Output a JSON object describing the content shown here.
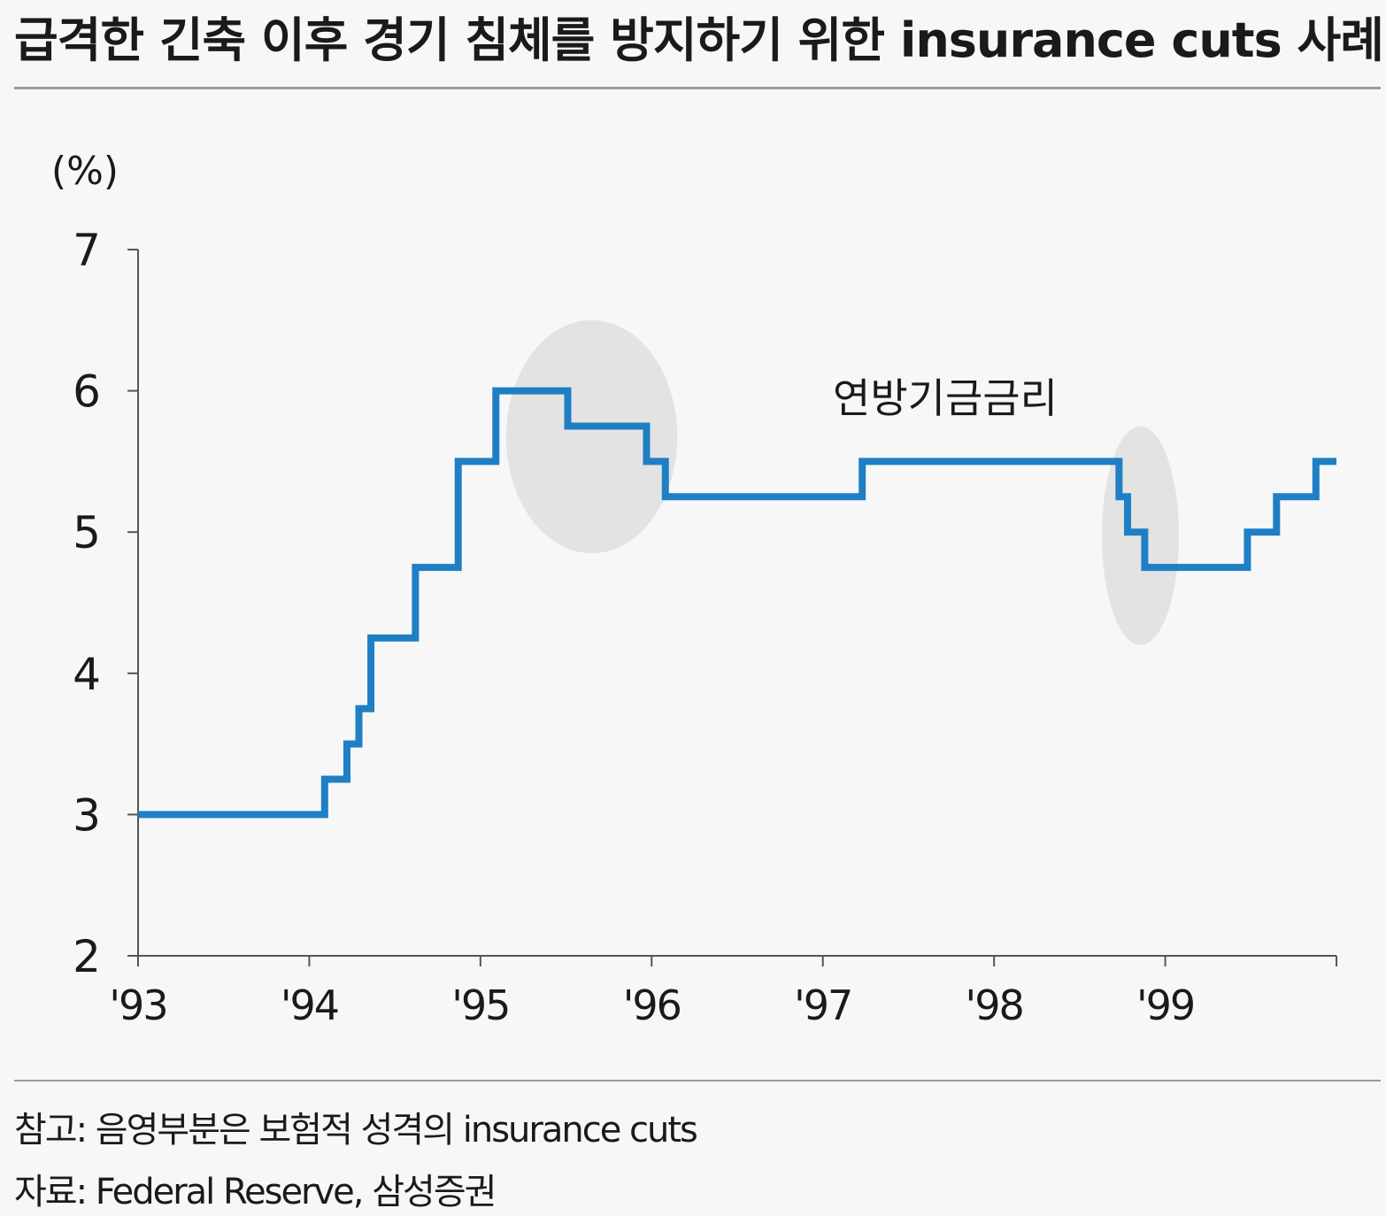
{
  "title": "급격한 긴축 이후 경기 침체를 방지하기 위한 insurance cuts 사례",
  "notes": {
    "reference": "참고: 음영부분은 보험적 성격의 insurance cuts",
    "source": "자료: Federal Reserve, 삼성증권"
  },
  "colors": {
    "line": "#1f7fc4",
    "shade": "#e3e3e3",
    "axis": "#555555"
  },
  "chart_data": {
    "type": "line",
    "step": true,
    "unit_label": "(%)",
    "series_label": "연방기금금리",
    "xlim": [
      1993,
      2000
    ],
    "ylim": [
      2,
      7
    ],
    "yticks": [
      2,
      3,
      4,
      5,
      6,
      7
    ],
    "xticks": [
      {
        "value": 1993,
        "label": "'93"
      },
      {
        "value": 1994,
        "label": "'94"
      },
      {
        "value": 1995,
        "label": "'95"
      },
      {
        "value": 1996,
        "label": "'96"
      },
      {
        "value": 1997,
        "label": "'97"
      },
      {
        "value": 1998,
        "label": "'98"
      },
      {
        "value": 1999,
        "label": "'99"
      }
    ],
    "series": [
      {
        "points": [
          [
            1993.0,
            3.0
          ],
          [
            1994.09,
            3.25
          ],
          [
            1994.22,
            3.5
          ],
          [
            1994.29,
            3.75
          ],
          [
            1994.36,
            4.25
          ],
          [
            1994.62,
            4.75
          ],
          [
            1994.87,
            5.5
          ],
          [
            1995.09,
            6.0
          ],
          [
            1995.51,
            5.75
          ],
          [
            1995.97,
            5.5
          ],
          [
            1996.08,
            5.25
          ],
          [
            1997.23,
            5.5
          ],
          [
            1998.73,
            5.25
          ],
          [
            1998.78,
            5.0
          ],
          [
            1998.88,
            4.75
          ],
          [
            1999.48,
            5.0
          ],
          [
            1999.65,
            5.25
          ],
          [
            1999.88,
            5.5
          ],
          [
            2000.0,
            5.5
          ]
        ]
      }
    ],
    "shaded_regions": [
      {
        "x": [
          1995.15,
          1996.15
        ],
        "y": [
          4.85,
          6.5
        ]
      },
      {
        "x": [
          1998.63,
          1999.08
        ],
        "y": [
          4.2,
          5.75
        ]
      }
    ]
  }
}
